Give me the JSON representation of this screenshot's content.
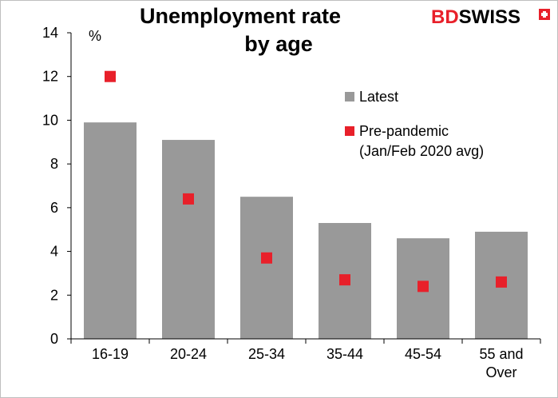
{
  "chart_data": {
    "type": "bar",
    "title_lines": [
      "Unemployment rate",
      "by age"
    ],
    "unit_label": "%",
    "categories": [
      [
        "16-19"
      ],
      [
        "20-24"
      ],
      [
        "25-34"
      ],
      [
        "35-44"
      ],
      [
        "45-54"
      ],
      [
        "55 and",
        "Over"
      ]
    ],
    "series": [
      {
        "name": "Latest",
        "kind": "bar",
        "color": "#999999",
        "values": [
          9.9,
          9.1,
          6.5,
          5.3,
          4.6,
          4.9
        ]
      },
      {
        "name": "Pre-pandemic",
        "name_line2": "(Jan/Feb 2020 avg)",
        "kind": "marker",
        "color": "#e8202a",
        "values": [
          12.0,
          6.4,
          3.7,
          2.7,
          2.4,
          2.6
        ]
      }
    ],
    "ylim": [
      0,
      14
    ],
    "yticks": [
      0,
      2,
      4,
      6,
      8,
      10,
      12,
      14
    ],
    "grid": false,
    "legend_position": "right"
  },
  "logo": {
    "part1": "BD",
    "part2": "SWISS",
    "color1": "#e8202a",
    "color2": "#000000"
  }
}
